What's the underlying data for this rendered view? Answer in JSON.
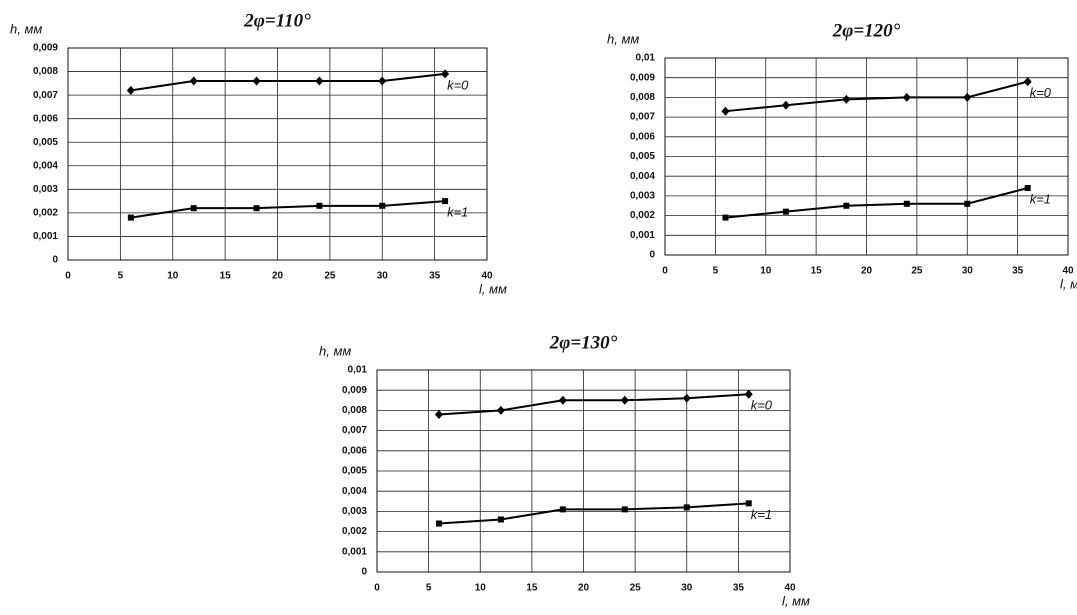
{
  "chart_data": [
    {
      "type": "line",
      "title": "2φ=110°",
      "y_label": "h, мм",
      "x_label": "l, мм",
      "x": [
        6,
        12,
        18,
        24,
        30,
        36
      ],
      "series": [
        {
          "name": "k=0",
          "color": "#000000",
          "marker": "diamond",
          "values": [
            0.0072,
            0.0076,
            0.0076,
            0.0076,
            0.0076,
            0.0079
          ]
        },
        {
          "name": "k=1",
          "color": "#000000",
          "marker": "square",
          "values": [
            0.0018,
            0.0022,
            0.0022,
            0.0023,
            0.0023,
            0.0025
          ]
        }
      ],
      "xlim": [
        0,
        40
      ],
      "xticks": [
        0,
        5,
        10,
        15,
        20,
        25,
        30,
        35,
        40
      ],
      "ylim": [
        0,
        0.009
      ],
      "yticks": [
        0,
        {
          "value": 0.001,
          "label": "0,001"
        },
        {
          "value": 0.002,
          "label": "0,002"
        },
        {
          "value": 0.003,
          "label": "0,003"
        },
        {
          "value": 0.004,
          "label": "0,004"
        },
        {
          "value": 0.005,
          "label": "0,005"
        },
        {
          "value": 0.006,
          "label": "0,006"
        },
        {
          "value": 0.007,
          "label": "0,007"
        },
        {
          "value": 0.008,
          "label": "0,008"
        },
        {
          "value": 0.009,
          "label": "0,009"
        }
      ],
      "grid": true
    },
    {
      "type": "line",
      "title": "2φ=120°",
      "y_label": "h, мм",
      "x_label": "l, мм",
      "x": [
        6,
        12,
        18,
        24,
        30,
        36
      ],
      "series": [
        {
          "name": "k=0",
          "color": "#000000",
          "marker": "diamond",
          "values": [
            0.0073,
            0.0076,
            0.0079,
            0.008,
            0.008,
            0.0088
          ]
        },
        {
          "name": "k=1",
          "color": "#000000",
          "marker": "square",
          "values": [
            0.0019,
            0.0022,
            0.0025,
            0.0026,
            0.0026,
            0.0034
          ]
        }
      ],
      "xlim": [
        0,
        40
      ],
      "xticks": [
        0,
        5,
        10,
        15,
        20,
        25,
        30,
        35,
        40
      ],
      "ylim": [
        0,
        0.01
      ],
      "yticks": [
        0,
        {
          "value": 0.001,
          "label": "0,001"
        },
        {
          "value": 0.002,
          "label": "0,002"
        },
        {
          "value": 0.003,
          "label": "0,003"
        },
        {
          "value": 0.004,
          "label": "0,004"
        },
        {
          "value": 0.005,
          "label": "0,005"
        },
        {
          "value": 0.006,
          "label": "0,006"
        },
        {
          "value": 0.007,
          "label": "0,007"
        },
        {
          "value": 0.008,
          "label": "0,008"
        },
        {
          "value": 0.009,
          "label": "0,009"
        },
        {
          "value": 0.01,
          "label": "0,01"
        }
      ],
      "grid": true
    },
    {
      "type": "line",
      "title": "2φ=130°",
      "y_label": "h, мм",
      "x_label": "l, мм",
      "x": [
        6,
        12,
        18,
        24,
        30,
        36
      ],
      "series": [
        {
          "name": "k=0",
          "color": "#000000",
          "marker": "diamond",
          "values": [
            0.0078,
            0.008,
            0.0085,
            0.0085,
            0.0086,
            0.0088
          ]
        },
        {
          "name": "k=1",
          "color": "#000000",
          "marker": "square",
          "values": [
            0.0024,
            0.0026,
            0.0031,
            0.0031,
            0.0032,
            0.0034
          ]
        }
      ],
      "xlim": [
        0,
        40
      ],
      "xticks": [
        0,
        5,
        10,
        15,
        20,
        25,
        30,
        35,
        40
      ],
      "ylim": [
        0,
        0.01
      ],
      "yticks": [
        0,
        {
          "value": 0.001,
          "label": "0,001"
        },
        {
          "value": 0.002,
          "label": "0,002"
        },
        {
          "value": 0.003,
          "label": "0,003"
        },
        {
          "value": 0.004,
          "label": "0,004"
        },
        {
          "value": 0.005,
          "label": "0,005"
        },
        {
          "value": 0.006,
          "label": "0,006"
        },
        {
          "value": 0.007,
          "label": "0,007"
        },
        {
          "value": 0.008,
          "label": "0,008"
        },
        {
          "value": 0.009,
          "label": "0,009"
        },
        {
          "value": 0.01,
          "label": "0,01"
        }
      ],
      "grid": true
    }
  ]
}
